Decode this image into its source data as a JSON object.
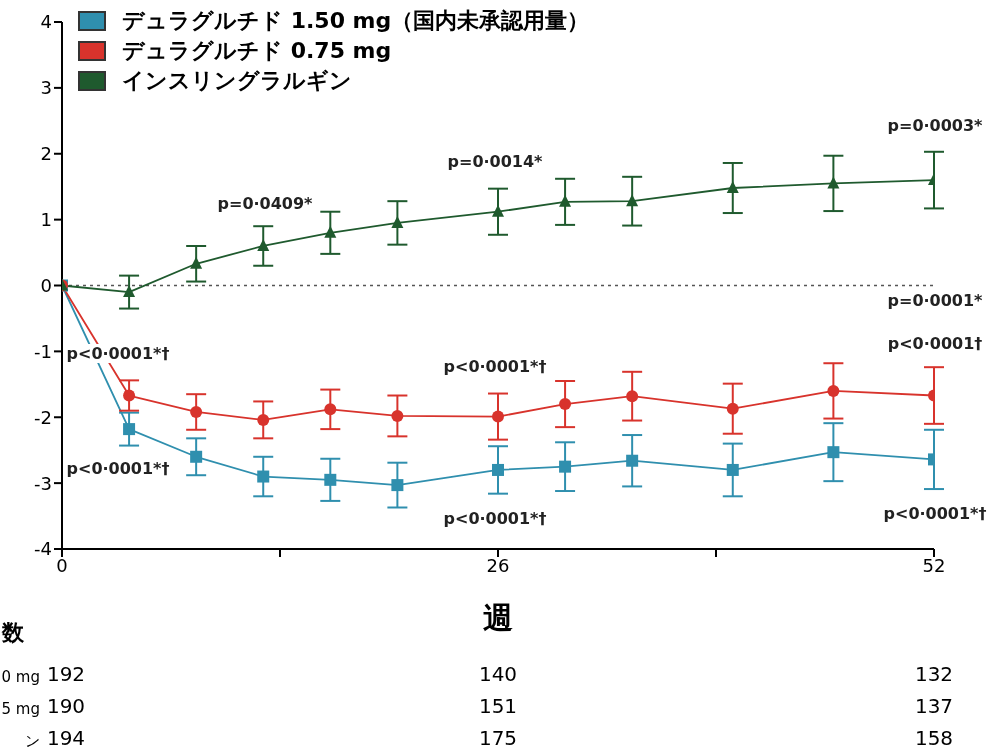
{
  "chart_data": {
    "type": "line",
    "xlabel": "週",
    "x": [
      0,
      4,
      8,
      12,
      16,
      20,
      26,
      30,
      34,
      40,
      46,
      52
    ],
    "xlim": [
      0,
      52
    ],
    "xticks": [
      0,
      {
        "value": 13,
        "label": null
      },
      26,
      {
        "value": 39,
        "label": null
      },
      52
    ],
    "ylim": [
      -4,
      4
    ],
    "yticks": [
      -4,
      -3,
      -2,
      -1,
      0,
      1,
      2,
      3,
      4
    ],
    "grid": false,
    "legend": "top left",
    "line_style": "solid",
    "series": [
      {
        "name": "デュラグルチド  1.50 mg（国内未承認用量）",
        "color": "#2f8fae",
        "marker": "square",
        "values": [
          0,
          -2.18,
          -2.6,
          -2.9,
          -2.95,
          -3.03,
          -2.8,
          -2.75,
          -2.66,
          -2.8,
          -2.53,
          -2.64
        ],
        "errors": [
          null,
          0.25,
          0.28,
          0.3,
          0.32,
          0.34,
          0.36,
          0.37,
          0.39,
          0.4,
          0.44,
          0.45
        ]
      },
      {
        "name": "デュラグルチド  0.75 mg",
        "color": "#d8332c",
        "marker": "circle",
        "values": [
          0,
          -1.67,
          -1.92,
          -2.04,
          -1.88,
          -1.98,
          -1.99,
          -1.8,
          -1.68,
          -1.87,
          -1.6,
          -1.67
        ],
        "errors": [
          null,
          0.23,
          0.27,
          0.28,
          0.3,
          0.31,
          0.35,
          0.35,
          0.37,
          0.38,
          0.42,
          0.43
        ]
      },
      {
        "name": "インスリングラルギン",
        "color": "#1f5a2e",
        "marker": "triangle",
        "values": [
          0,
          -0.1,
          0.33,
          0.6,
          0.8,
          0.95,
          1.12,
          1.27,
          1.28,
          1.48,
          1.55,
          1.6
        ],
        "errors": [
          null,
          0.25,
          0.27,
          0.3,
          0.32,
          0.33,
          0.35,
          0.35,
          0.37,
          0.38,
          0.42,
          0.43
        ]
      }
    ],
    "ref_lines": [
      {
        "axis": "y",
        "value": 0,
        "color": "#555555",
        "line_style": "dotted"
      }
    ],
    "annotations": [
      "p=0·0409*",
      "p=0·0014*",
      "p=0·0003*",
      "p=0·0001*",
      "p<0·0001†",
      "p<0·0001*†",
      "p<0·0001*†",
      "p<0·0001*†",
      "p<0·0001*†",
      "p<0·0001*†",
      "数",
      "0 mg",
      "192",
      "140",
      "132",
      "5 mg",
      "190",
      "151",
      "137",
      "ン",
      "194",
      "175",
      "158"
    ]
  }
}
